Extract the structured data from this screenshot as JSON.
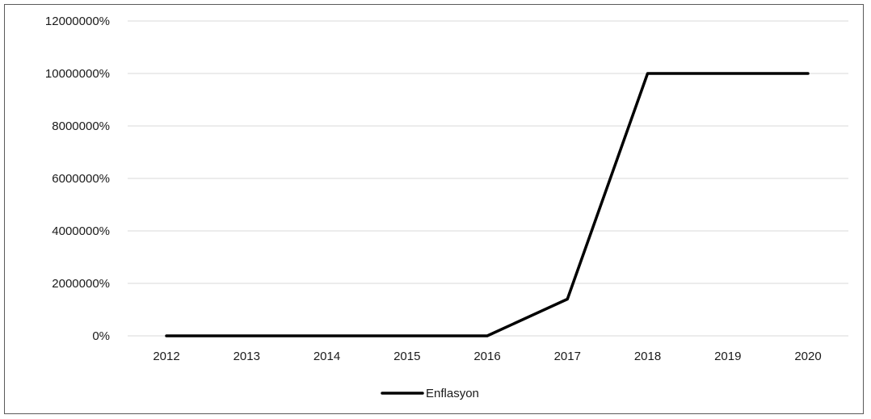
{
  "chart_data": {
    "type": "line",
    "title": "",
    "xlabel": "",
    "ylabel": "",
    "x": [
      "2012",
      "2013",
      "2014",
      "2015",
      "2016",
      "2017",
      "2018",
      "2019",
      "2020"
    ],
    "series": [
      {
        "name": "Enflasyon",
        "color": "#000000",
        "values": [
          0,
          0,
          0,
          0,
          0,
          1400000,
          10000000,
          10000000,
          10000000
        ]
      }
    ],
    "ylim": [
      0,
      12000000
    ],
    "yticks": [
      0,
      2000000,
      4000000,
      6000000,
      8000000,
      10000000,
      12000000
    ],
    "ytick_labels": [
      "0%",
      "2000000%",
      "4000000%",
      "6000000%",
      "8000000%",
      "10000000%",
      "12000000%"
    ],
    "grid": "horizontal",
    "legend": "bottom-center"
  }
}
